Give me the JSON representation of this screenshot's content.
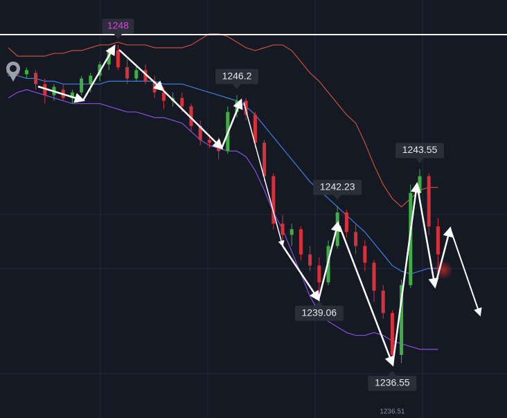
{
  "chart_data": {
    "type": "candlestick",
    "ylim": [
      1234.64,
      1249.61
    ],
    "up_color": "#3fae45",
    "down_color": "#d7323c",
    "hline": 1248.37,
    "candles": [
      [
        1247.0,
        1247.3,
        1246.9,
        1247.1
      ],
      [
        1247.1,
        1247.3,
        1246.9,
        1246.95
      ],
      [
        1246.95,
        1247.2,
        1246.8,
        1247.1
      ],
      [
        1247.0,
        1247.1,
        1246.4,
        1246.6
      ],
      [
        1246.6,
        1246.8,
        1245.9,
        1246.2
      ],
      [
        1246.2,
        1246.6,
        1246.0,
        1246.5
      ],
      [
        1246.4,
        1246.6,
        1246.0,
        1246.1
      ],
      [
        1246.1,
        1246.4,
        1245.9,
        1246.3
      ],
      [
        1246.3,
        1246.9,
        1246.2,
        1246.8
      ],
      [
        1246.6,
        1247.0,
        1246.3,
        1246.9
      ],
      [
        1246.9,
        1247.4,
        1246.7,
        1247.3
      ],
      [
        1247.3,
        1247.9,
        1247.1,
        1247.8
      ],
      [
        1247.8,
        1248,
        1247.1,
        1247.2
      ],
      [
        1247.2,
        1247.5,
        1246.6,
        1246.8
      ],
      [
        1246.8,
        1247.3,
        1246.7,
        1247.1
      ],
      [
        1247.1,
        1247.3,
        1246.6,
        1246.7
      ],
      [
        1246.7,
        1246.9,
        1246.1,
        1246.3
      ],
      [
        1246.3,
        1246.5,
        1245.7,
        1246.0
      ],
      [
        1246.0,
        1246.3,
        1245.8,
        1246.1
      ],
      [
        1246.1,
        1246.3,
        1245.6,
        1245.8
      ],
      [
        1245.8,
        1245.9,
        1244.9,
        1245.1
      ],
      [
        1245.1,
        1245.3,
        1244.4,
        1244.6
      ],
      [
        1244.6,
        1244.8,
        1244.3,
        1244.5
      ],
      [
        1244.5,
        1244.7,
        1243.9,
        1244.2
      ],
      [
        1244.2,
        1245.8,
        1244.1,
        1245.6
      ],
      [
        1245.6,
        1246.2,
        1245.4,
        1246.0
      ],
      [
        1246.0,
        1246.1,
        1245.3,
        1245.5
      ],
      [
        1245.5,
        1245.6,
        1244.3,
        1244.5
      ],
      [
        1244.5,
        1244.6,
        1243.1,
        1243.3
      ],
      [
        1243.3,
        1243.4,
        1241.4,
        1241.6
      ],
      [
        1241.6,
        1241.9,
        1240.9,
        1241.2
      ],
      [
        1241.2,
        1241.6,
        1240.8,
        1241.4
      ],
      [
        1241.4,
        1241.5,
        1240.3,
        1240.5
      ],
      [
        1240.5,
        1240.8,
        1239.9,
        1240.1
      ],
      [
        1240.1,
        1240.4,
        1239.06,
        1239.5
      ],
      [
        1239.5,
        1241.0,
        1239.4,
        1240.8
      ],
      [
        1240.8,
        1242.23,
        1240.7,
        1242.0
      ],
      [
        1242.0,
        1242.1,
        1241.1,
        1241.3
      ],
      [
        1241.3,
        1241.6,
        1240.5,
        1240.8
      ],
      [
        1240.8,
        1241.0,
        1239.9,
        1240.2
      ],
      [
        1240.2,
        1240.3,
        1238.8,
        1239.2
      ],
      [
        1239.2,
        1239.4,
        1238.2,
        1238.4
      ],
      [
        1238.4,
        1238.5,
        1236.55,
        1236.9
      ],
      [
        1236.9,
        1239.6,
        1236.6,
        1239.4
      ],
      [
        1239.4,
        1243.0,
        1239.3,
        1242.7
      ],
      [
        1242.7,
        1243.55,
        1242.5,
        1243.3
      ],
      [
        1243.3,
        1243.4,
        1241.2,
        1241.5
      ],
      [
        1241.5,
        1241.8,
        1239.8,
        1240.5
      ]
    ],
    "bands": [
      {
        "color": "#c8503a",
        "values": [
          1247.9,
          1247.6,
          1247.6,
          1247.6,
          1247.6,
          1247.7,
          1247.7,
          1247.8,
          1247.8,
          1247.9,
          1248.0,
          1248.0,
          1248.1,
          1248.0,
          1248.0,
          1248.0,
          1247.9,
          1247.9,
          1247.9,
          1247.9,
          1248.0,
          1248.2,
          1248.4,
          1248.4,
          1248.3,
          1248.1,
          1247.9,
          1247.8,
          1247.9,
          1248.0,
          1248.0,
          1247.8,
          1247.4,
          1247.0,
          1246.7,
          1246.3,
          1245.9,
          1245.5,
          1245.2,
          1244.5,
          1243.7,
          1243.0,
          1242.5,
          1242.2,
          1242.5,
          1242.8,
          1242.9,
          1242.9
        ]
      },
      {
        "color": "#3f7fe0",
        "values": [
          1246.9,
          1246.9,
          1246.8,
          1246.8,
          1246.7,
          1246.7,
          1246.6,
          1246.6,
          1246.6,
          1246.6,
          1246.6,
          1246.7,
          1246.7,
          1246.7,
          1246.7,
          1246.7,
          1246.7,
          1246.6,
          1246.6,
          1246.6,
          1246.5,
          1246.4,
          1246.3,
          1246.2,
          1246.1,
          1246.0,
          1245.8,
          1245.5,
          1245.1,
          1244.7,
          1244.3,
          1243.9,
          1243.5,
          1243.1,
          1242.8,
          1242.5,
          1242.2,
          1241.9,
          1241.6,
          1241.3,
          1240.9,
          1240.5,
          1240.1,
          1239.9,
          1239.8,
          1239.9,
          1240.0,
          1240.0
        ]
      },
      {
        "color": "#8a4fe0",
        "values": [
          1246.1,
          1246.3,
          1246.4,
          1246.3,
          1246.2,
          1246.1,
          1246.0,
          1245.9,
          1245.9,
          1245.9,
          1245.9,
          1245.8,
          1245.7,
          1245.6,
          1245.6,
          1245.5,
          1245.4,
          1245.4,
          1245.3,
          1245.2,
          1244.9,
          1244.6,
          1244.4,
          1244.3,
          1244.2,
          1244.2,
          1244.0,
          1243.5,
          1242.8,
          1242.0,
          1241.4,
          1240.6,
          1239.8,
          1239.0,
          1238.4,
          1238.1,
          1237.9,
          1237.7,
          1237.6,
          1237.6,
          1237.7,
          1237.6,
          1237.4,
          1237.3,
          1237.2,
          1237.1,
          1237.1,
          1237.1
        ]
      }
    ],
    "annotations": [
      {
        "value": 1248,
        "color": "#e23fe0"
      },
      {
        "value": 1246.2,
        "color": "#e6e8ee"
      },
      {
        "value": 1243.55,
        "color": "#e6e8ee"
      },
      {
        "value": 1242.23,
        "color": "#e6e8ee"
      },
      {
        "value": 1239.06,
        "color": "#e6e8ee"
      },
      {
        "value": 1236.55,
        "color": "#e6e8ee"
      }
    ],
    "bottom_label": "1236.51"
  }
}
